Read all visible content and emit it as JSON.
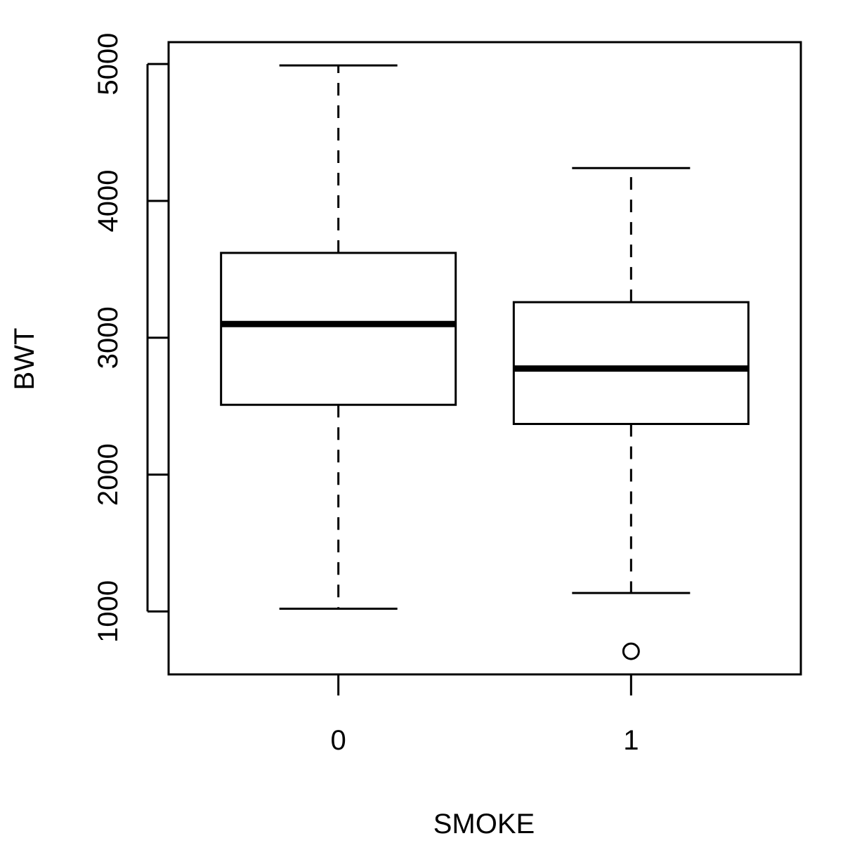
{
  "chart_data": {
    "type": "boxplot",
    "title": "",
    "xlabel": "SMOKE",
    "ylabel": "BWT",
    "ylim": [
      540,
      5160
    ],
    "yticks": [
      1000,
      2000,
      3000,
      4000,
      5000
    ],
    "grid": false,
    "categories": [
      "0",
      "1"
    ],
    "boxes": [
      {
        "category": "0",
        "whisker_low": 1020,
        "q1": 2510,
        "median": 3100,
        "q3": 3620,
        "whisker_high": 4990,
        "outliers": []
      },
      {
        "category": "1",
        "whisker_low": 1135,
        "q1": 2370,
        "median": 2775,
        "q3": 3260,
        "whisker_high": 4240,
        "outliers": [
          709
        ]
      }
    ]
  }
}
